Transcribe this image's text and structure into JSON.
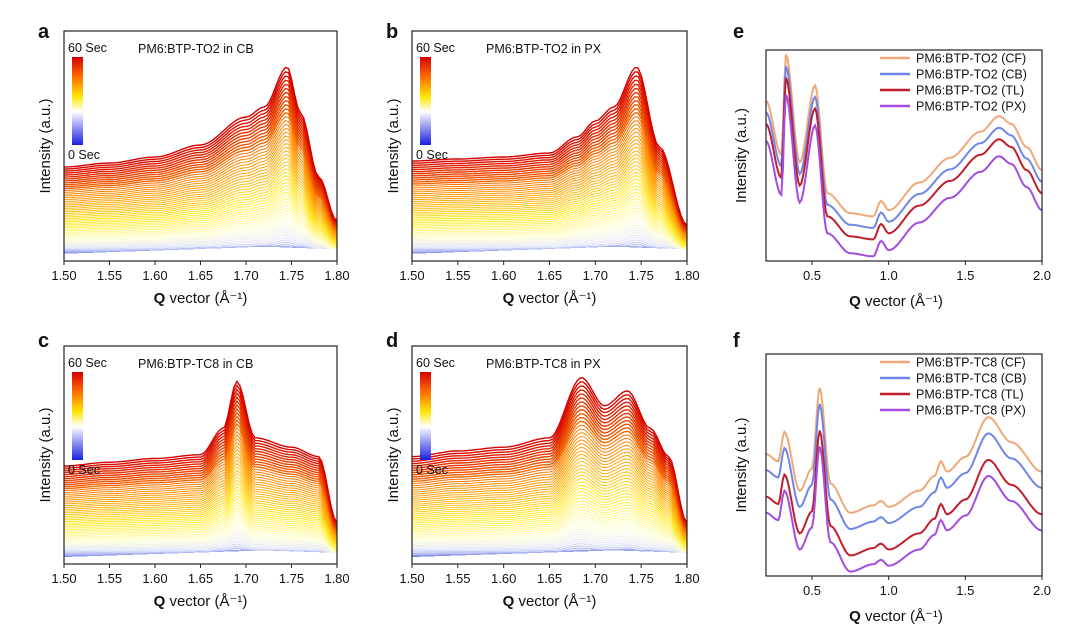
{
  "chart_data": [
    {
      "panel": "a",
      "type": "line",
      "title": "PM6:BTP-TO2 in CB",
      "xlabel_bold": "Q",
      "xlabel_rest": " vector (Å⁻¹)",
      "ylabel": "Intensity (a.u.)",
      "xlim": [
        1.5,
        1.8
      ],
      "xticks": [
        "1.50",
        "1.55",
        "1.60",
        "1.65",
        "1.70",
        "1.75",
        "1.80"
      ],
      "colorbar": {
        "top": "60 Sec",
        "bottom": "0 Sec"
      },
      "n_frames": 60,
      "final_frame_profile": {
        "x": [
          1.5,
          1.55,
          1.6,
          1.65,
          1.7,
          1.72,
          1.745,
          1.76,
          1.78,
          1.8
        ],
        "y": [
          0.45,
          0.47,
          0.5,
          0.56,
          0.7,
          0.75,
          0.95,
          0.72,
          0.4,
          0.18
        ]
      }
    },
    {
      "panel": "b",
      "type": "line",
      "title": "PM6:BTP-TO2 in PX",
      "xlabel_bold": "Q",
      "xlabel_rest": " vector (Å⁻¹)",
      "ylabel": "Intensity (a.u.)",
      "xlim": [
        1.5,
        1.8
      ],
      "xticks": [
        "1.50",
        "1.55",
        "1.60",
        "1.65",
        "1.70",
        "1.75",
        "1.80"
      ],
      "colorbar": {
        "top": "60 Sec",
        "bottom": "0 Sec"
      },
      "n_frames": 60,
      "final_frame_profile": {
        "x": [
          1.5,
          1.55,
          1.6,
          1.65,
          1.68,
          1.7,
          1.72,
          1.745,
          1.77,
          1.8
        ],
        "y": [
          0.48,
          0.49,
          0.5,
          0.52,
          0.6,
          0.68,
          0.75,
          0.95,
          0.55,
          0.16
        ]
      }
    },
    {
      "panel": "c",
      "type": "line",
      "title": "PM6:BTP-TC8 in CB",
      "xlabel_bold": "Q",
      "xlabel_rest": " vector (Å⁻¹)",
      "ylabel": "Intensity (a.u.)",
      "xlim": [
        1.5,
        1.8
      ],
      "xticks": [
        "1.50",
        "1.55",
        "1.60",
        "1.65",
        "1.70",
        "1.75",
        "1.80"
      ],
      "colorbar": {
        "top": "60 Sec",
        "bottom": "0 Sec"
      },
      "n_frames": 60,
      "final_frame_profile": {
        "x": [
          1.5,
          1.55,
          1.6,
          1.65,
          1.675,
          1.69,
          1.71,
          1.75,
          1.78,
          1.8
        ],
        "y": [
          0.5,
          0.52,
          0.54,
          0.56,
          0.7,
          0.95,
          0.65,
          0.6,
          0.55,
          0.2
        ]
      }
    },
    {
      "panel": "d",
      "type": "line",
      "title": "PM6:BTP-TC8 in PX",
      "xlabel_bold": "Q",
      "xlabel_rest": " vector (Å⁻¹)",
      "ylabel": "Intensity (a.u.)",
      "xlim": [
        1.5,
        1.8
      ],
      "xticks": [
        "1.50",
        "1.55",
        "1.60",
        "1.65",
        "1.70",
        "1.75",
        "1.80"
      ],
      "colorbar": {
        "top": "60 Sec",
        "bottom": "0 Sec"
      },
      "n_frames": 60,
      "final_frame_profile": {
        "x": [
          1.5,
          1.55,
          1.6,
          1.65,
          1.685,
          1.71,
          1.735,
          1.76,
          1.78,
          1.8
        ],
        "y": [
          0.55,
          0.58,
          0.6,
          0.65,
          0.97,
          0.82,
          0.9,
          0.7,
          0.55,
          0.2
        ]
      }
    },
    {
      "panel": "e",
      "type": "line",
      "xlabel_bold": "Q",
      "xlabel_rest": " vector (Å⁻¹)",
      "ylabel": "Intensity (a.u.)",
      "xlim": [
        0.2,
        2.0
      ],
      "xticks": [
        "0.5",
        "1.0",
        "1.5",
        "2.0"
      ],
      "xtick_values": [
        0.5,
        1.0,
        1.5,
        2.0
      ],
      "series": [
        {
          "name": "PM6:BTP-TO2 (CF)",
          "color": "#F0A878",
          "offset": 1.5
        },
        {
          "name": "PM6:BTP-TO2 (CB)",
          "color": "#6F86E8",
          "offset": 0.75
        },
        {
          "name": "PM6:BTP-TO2 (TL)",
          "color": "#C01F2A",
          "offset": 0.0
        },
        {
          "name": "PM6:BTP-TO2 (PX)",
          "color": "#A24CE0",
          "offset": -1.1
        }
      ],
      "base_profile": {
        "x": [
          0.2,
          0.3,
          0.33,
          0.42,
          0.52,
          0.6,
          0.75,
          0.9,
          0.95,
          1.0,
          1.2,
          1.4,
          1.6,
          1.72,
          1.8,
          1.9,
          2.0
        ],
        "y": [
          7.5,
          4,
          10.5,
          3.5,
          8.5,
          1.5,
          0.2,
          0,
          1.0,
          0.4,
          2.2,
          3.8,
          5.5,
          6.5,
          6,
          4.5,
          3
        ]
      }
    },
    {
      "panel": "f",
      "type": "line",
      "xlabel_bold": "Q",
      "xlabel_rest": " vector (Å⁻¹)",
      "ylabel": "Intensity (a.u.)",
      "xlim": [
        0.2,
        2.0
      ],
      "xticks": [
        "0.5",
        "1.0",
        "1.5",
        "2.0"
      ],
      "xtick_values": [
        0.5,
        1.0,
        1.5,
        2.0
      ],
      "series": [
        {
          "name": "PM6:BTP-TC8 (CF)",
          "color": "#F0A878",
          "offset": 2.9
        },
        {
          "name": "PM6:BTP-TC8 (CB)",
          "color": "#6F86E8",
          "offset": 1.8
        },
        {
          "name": "PM6:BTP-TC8 (TL)",
          "color": "#C01F2A",
          "offset": 0.0
        },
        {
          "name": "PM6:BTP-TC8 (PX)",
          "color": "#A24CE0",
          "offset": -1.1
        }
      ],
      "base_profile": {
        "x": [
          0.2,
          0.28,
          0.32,
          0.42,
          0.5,
          0.55,
          0.62,
          0.75,
          0.9,
          0.95,
          1.0,
          1.2,
          1.3,
          1.34,
          1.38,
          1.5,
          1.65,
          1.8,
          2.0
        ],
        "y": [
          4,
          3.5,
          5.5,
          1.5,
          3,
          8.5,
          2,
          0,
          0.5,
          0.8,
          0.4,
          1.5,
          2.5,
          3.5,
          2.8,
          3.8,
          6.5,
          4.8,
          2.8
        ]
      }
    }
  ]
}
